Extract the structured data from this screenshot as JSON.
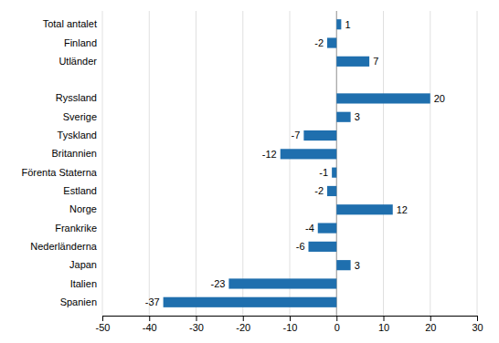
{
  "chart_data": {
    "type": "bar",
    "orientation": "horizontal",
    "categories": [
      "Spanien",
      "Italien",
      "Japan",
      "Nederländerna",
      "Frankrike",
      "Norge",
      "Estland",
      "Förenta Staterna",
      "Britannien",
      "Tyskland",
      "Sverige",
      "Ryssland",
      null,
      "Utländer",
      "Finland",
      "Total antalet"
    ],
    "values": [
      -37,
      -23,
      3,
      -6,
      -4,
      12,
      -2,
      -1,
      -12,
      -7,
      3,
      20,
      null,
      7,
      -2,
      1
    ],
    "color": "#1F6FAE",
    "xlim": [
      -50,
      30
    ],
    "xticks": [
      -50,
      -40,
      -30,
      -20,
      -10,
      0,
      10,
      20,
      30
    ],
    "grid": true,
    "data_labels": true
  }
}
